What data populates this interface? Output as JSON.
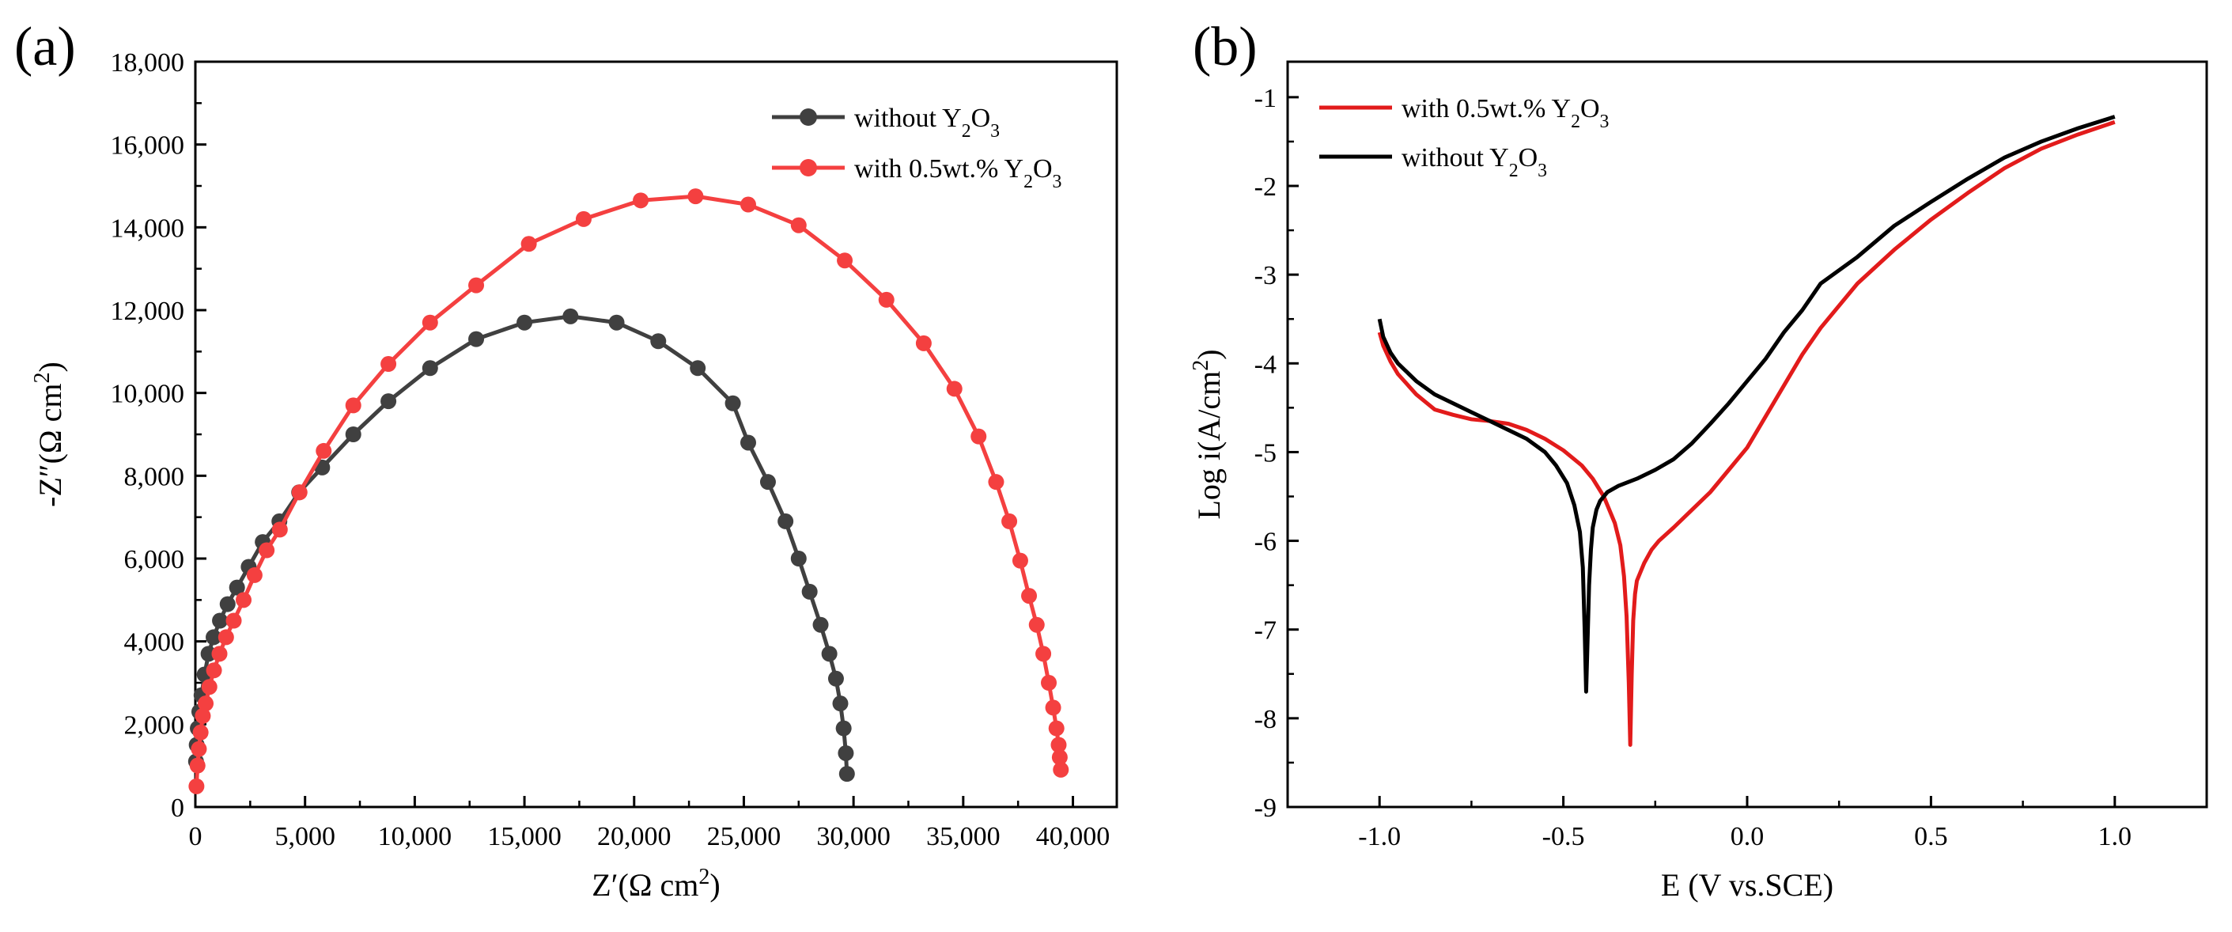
{
  "chart_data": [
    {
      "type": "scatter",
      "panel_label": "(a)",
      "xlabel": "Z′(Ω cm²)",
      "ylabel": "-Z″(Ω cm²)",
      "xlim": [
        0,
        42000
      ],
      "ylim": [
        0,
        18000
      ],
      "xticks": [
        0,
        5000,
        10000,
        15000,
        20000,
        25000,
        30000,
        35000,
        40000
      ],
      "xtick_labels": [
        "0",
        "5,000",
        "10,000",
        "15,000",
        "20,000",
        "25,000",
        "30,000",
        "35,000",
        "40,000"
      ],
      "yticks": [
        0,
        2000,
        4000,
        6000,
        8000,
        10000,
        12000,
        14000,
        16000,
        18000
      ],
      "ytick_labels": [
        "0",
        "2,000",
        "4,000",
        "6,000",
        "8,000",
        "10,000",
        "12,000",
        "14,000",
        "16,000",
        "18,000"
      ],
      "grid": false,
      "legend_position": "top-right",
      "series": [
        {
          "name": "without Y₂O₃",
          "color": "#404040",
          "marker": "circle",
          "x": [
            30,
            60,
            110,
            180,
            280,
            420,
            600,
            830,
            1120,
            1470,
            1900,
            2430,
            3070,
            3830,
            4730,
            5780,
            7200,
            8800,
            10700,
            12800,
            15000,
            17100,
            19200,
            21100,
            22900,
            24500,
            25200,
            26100,
            26900,
            27500,
            28000,
            28500,
            28900,
            29200,
            29400,
            29550,
            29650,
            29700
          ],
          "y": [
            1100,
            1500,
            1900,
            2300,
            2700,
            3200,
            3700,
            4100,
            4500,
            4900,
            5300,
            5800,
            6400,
            6900,
            7600,
            8200,
            9000,
            9800,
            10600,
            11300,
            11700,
            11850,
            11700,
            11250,
            10600,
            9750,
            8800,
            7850,
            6900,
            6000,
            5200,
            4400,
            3700,
            3100,
            2500,
            1900,
            1300,
            800
          ]
        },
        {
          "name": "with 0.5wt.% Y₂O₃",
          "color": "#f44040",
          "marker": "circle",
          "x": [
            50,
            100,
            160,
            240,
            340,
            470,
            640,
            850,
            1100,
            1400,
            1750,
            2200,
            2700,
            3250,
            3850,
            4750,
            5850,
            7200,
            8800,
            10700,
            12800,
            15200,
            17700,
            20300,
            22800,
            25200,
            27500,
            29600,
            31500,
            33200,
            34600,
            35700,
            36500,
            37100,
            37600,
            38000,
            38350,
            38650,
            38900,
            39100,
            39250,
            39350,
            39400,
            39450
          ],
          "y": [
            500,
            1000,
            1400,
            1800,
            2200,
            2500,
            2900,
            3300,
            3700,
            4100,
            4500,
            5000,
            5600,
            6200,
            6700,
            7600,
            8600,
            9700,
            10700,
            11700,
            12600,
            13600,
            14200,
            14650,
            14750,
            14550,
            14050,
            13200,
            12250,
            11200,
            10100,
            8950,
            7850,
            6900,
            5950,
            5100,
            4400,
            3700,
            3000,
            2400,
            1900,
            1500,
            1200,
            900
          ]
        }
      ]
    },
    {
      "type": "line",
      "panel_label": "(b)",
      "xlabel": "E (V vs.SCE)",
      "ylabel": "Log i(A/cm²)",
      "xlim": [
        -1.25,
        1.25
      ],
      "ylim": [
        -9,
        -0.6
      ],
      "xticks": [
        -1.0,
        -0.5,
        0.0,
        0.5,
        1.0
      ],
      "xtick_labels": [
        "-1.0",
        "-0.5",
        "0.0",
        "0.5",
        "1.0"
      ],
      "yticks": [
        -9,
        -8,
        -7,
        -6,
        -5,
        -4,
        -3,
        -2,
        -1
      ],
      "ytick_labels": [
        "-9",
        "-8",
        "-7",
        "-6",
        "-5",
        "-4",
        "-3",
        "-2",
        "-1"
      ],
      "grid": false,
      "legend_position": "top-left",
      "series": [
        {
          "name": "with 0.5wt.% Y₂O₃",
          "color": "#e21b1b",
          "x": [
            -1.0,
            -0.99,
            -0.97,
            -0.95,
            -0.9,
            -0.85,
            -0.8,
            -0.75,
            -0.7,
            -0.65,
            -0.6,
            -0.55,
            -0.5,
            -0.45,
            -0.42,
            -0.39,
            -0.36,
            -0.345,
            -0.335,
            -0.328,
            -0.322,
            -0.318,
            -0.314,
            -0.31,
            -0.305,
            -0.3,
            -0.29,
            -0.28,
            -0.26,
            -0.24,
            -0.2,
            -0.15,
            -0.1,
            -0.05,
            0.0,
            0.05,
            0.1,
            0.15,
            0.2,
            0.3,
            0.4,
            0.5,
            0.6,
            0.7,
            0.8,
            0.9,
            1.0
          ],
          "y": [
            -3.65,
            -3.8,
            -3.98,
            -4.12,
            -4.35,
            -4.52,
            -4.58,
            -4.63,
            -4.65,
            -4.68,
            -4.75,
            -4.85,
            -4.98,
            -5.15,
            -5.3,
            -5.5,
            -5.8,
            -6.05,
            -6.4,
            -6.85,
            -7.6,
            -8.3,
            -7.5,
            -6.9,
            -6.6,
            -6.45,
            -6.35,
            -6.25,
            -6.1,
            -6.0,
            -5.85,
            -5.65,
            -5.45,
            -5.2,
            -4.95,
            -4.6,
            -4.25,
            -3.9,
            -3.6,
            -3.1,
            -2.72,
            -2.38,
            -2.08,
            -1.8,
            -1.58,
            -1.42,
            -1.28
          ]
        },
        {
          "name": "without Y₂O₃",
          "color": "#000000",
          "x": [
            -1.0,
            -0.99,
            -0.97,
            -0.95,
            -0.9,
            -0.85,
            -0.8,
            -0.75,
            -0.7,
            -0.65,
            -0.6,
            -0.55,
            -0.52,
            -0.49,
            -0.47,
            -0.455,
            -0.447,
            -0.442,
            -0.438,
            -0.434,
            -0.43,
            -0.425,
            -0.42,
            -0.41,
            -0.4,
            -0.38,
            -0.35,
            -0.3,
            -0.25,
            -0.2,
            -0.15,
            -0.1,
            -0.05,
            0.0,
            0.05,
            0.1,
            0.15,
            0.2,
            0.3,
            0.4,
            0.5,
            0.6,
            0.7,
            0.8,
            0.9,
            1.0
          ],
          "y": [
            -3.5,
            -3.7,
            -3.88,
            -4.0,
            -4.2,
            -4.35,
            -4.45,
            -4.55,
            -4.65,
            -4.75,
            -4.85,
            -5.0,
            -5.15,
            -5.35,
            -5.6,
            -5.9,
            -6.3,
            -7.0,
            -7.7,
            -7.1,
            -6.5,
            -6.1,
            -5.85,
            -5.65,
            -5.55,
            -5.45,
            -5.38,
            -5.3,
            -5.2,
            -5.08,
            -4.9,
            -4.68,
            -4.45,
            -4.2,
            -3.95,
            -3.65,
            -3.4,
            -3.1,
            -2.8,
            -2.45,
            -2.18,
            -1.92,
            -1.68,
            -1.5,
            -1.35,
            -1.22
          ]
        }
      ]
    }
  ]
}
